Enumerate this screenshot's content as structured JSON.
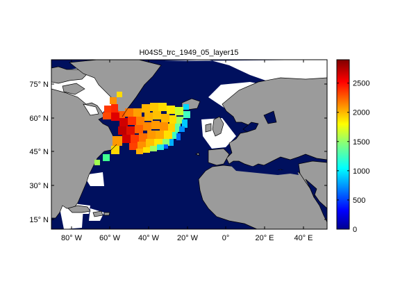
{
  "figure": {
    "title": "H04S5_trc_1949_05_layer15"
  },
  "map": {
    "lat_ticks": [
      "75° N",
      "60° N",
      "45° N",
      "30° N",
      "15° N"
    ],
    "lon_ticks": [
      "80° W",
      "60° W",
      "40° W",
      "20° W",
      "0°",
      "20° E",
      "40° E"
    ],
    "colors": {
      "ocean": "#00105e",
      "land": "#9b9b9b",
      "no_data": "#ffffff",
      "coast": "#000000"
    }
  },
  "colorbar": {
    "ticks": [
      "0",
      "500",
      "1000",
      "1500",
      "2000",
      "2500"
    ],
    "values": [
      0,
      500,
      1000,
      1500,
      2000,
      2500
    ],
    "min": 0,
    "max": 2900
  }
}
